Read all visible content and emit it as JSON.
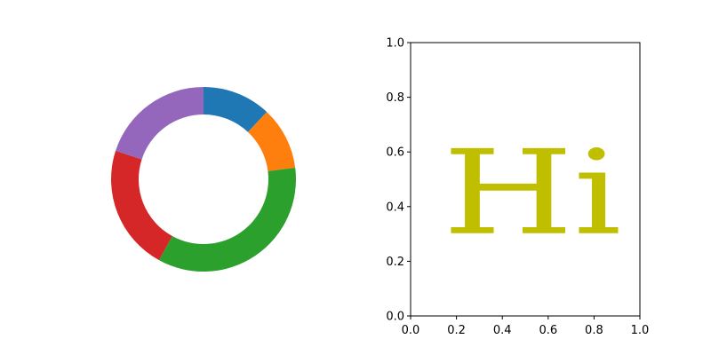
{
  "chart_data": [
    {
      "type": "pie",
      "style": "donut",
      "slices": [
        {
          "value": 12,
          "color": "#1f77b4"
        },
        {
          "value": 11,
          "color": "#ff7f0e"
        },
        {
          "value": 35,
          "color": "#2ca02c"
        },
        {
          "value": 22,
          "color": "#d62728"
        },
        {
          "value": 20,
          "color": "#9467bd"
        }
      ],
      "start_angle_deg": 90,
      "counterclock": false
    },
    {
      "type": "scatter",
      "xlim": [
        0,
        1
      ],
      "ylim": [
        0,
        1
      ],
      "xticks": [
        "0.0",
        "0.2",
        "0.4",
        "0.6",
        "0.8",
        "1.0"
      ],
      "yticks": [
        "0.0",
        "0.2",
        "0.4",
        "0.6",
        "0.8",
        "1.0"
      ],
      "grid": false,
      "annotation": {
        "text": "Hi",
        "color": "#bfbf00",
        "x_range": [
          0.14,
          0.92
        ],
        "y_range": [
          0.2,
          0.7
        ]
      }
    }
  ]
}
